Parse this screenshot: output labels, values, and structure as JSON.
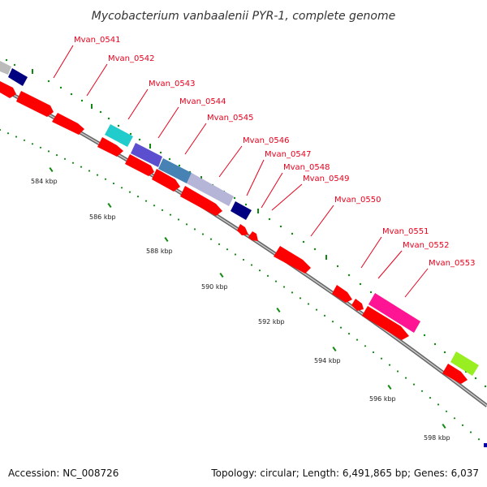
{
  "title": "Mycobacterium vanbaalenii PYR-1, complete genome",
  "footer": {
    "accession": "Accession: NC_008726",
    "summary": "Topology: circular; Length: 6,491,865 bp; Genes: 6,037"
  },
  "ticks": [
    "584 kbp",
    "586 kbp",
    "588 kbp",
    "590 kbp",
    "592 kbp",
    "594 kbp",
    "596 kbp",
    "598 kbp"
  ],
  "genes": [
    {
      "label": "Mvan_0541"
    },
    {
      "label": "Mvan_0542"
    },
    {
      "label": "Mvan_0543"
    },
    {
      "label": "Mvan_0544"
    },
    {
      "label": "Mvan_0545"
    },
    {
      "label": "Mvan_0546"
    },
    {
      "label": "Mvan_0547"
    },
    {
      "label": "Mvan_0548"
    },
    {
      "label": "Mvan_0549"
    },
    {
      "label": "Mvan_0550"
    },
    {
      "label": "Mvan_0551"
    },
    {
      "label": "Mvan_0552"
    },
    {
      "label": "Mvan_0553"
    }
  ],
  "colors": {
    "gene_arrow": "#ff0000",
    "backbone": "#888888",
    "tick": "#118811",
    "label": "#e8001c",
    "navy": "#000080",
    "cyan": "#22cccc",
    "steelblue": "#4682b4",
    "slateblue": "#6a5acd",
    "silver": "#bbbbbb",
    "magenta": "#ff1493",
    "lime": "#99ee22"
  }
}
